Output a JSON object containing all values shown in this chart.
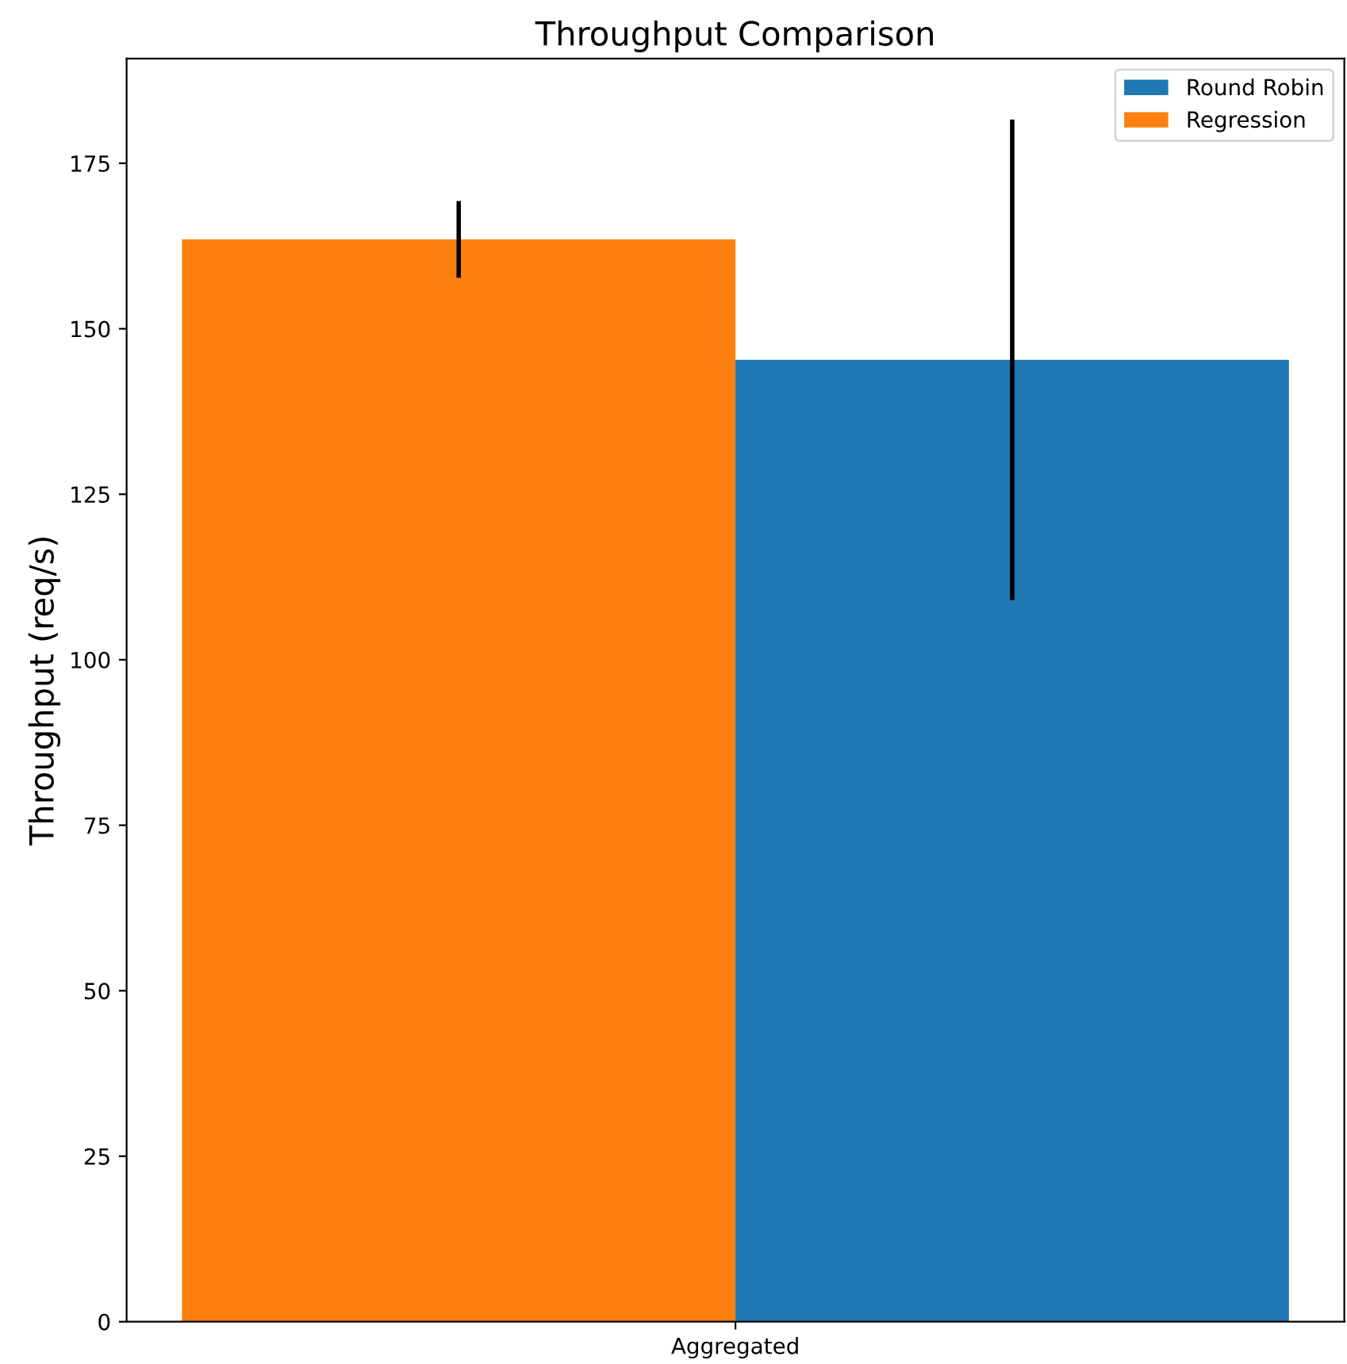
{
  "chart_data": {
    "type": "bar",
    "title": "Throughput Comparison",
    "ylabel": "Throughput (req/s)",
    "categories": [
      "Aggregated"
    ],
    "series": [
      {
        "name": "Regression",
        "color": "#ff7f0e",
        "values": [
          163.5
        ],
        "errors": [
          5.8
        ]
      },
      {
        "name": "Round Robin",
        "color": "#1f77b4",
        "values": [
          145.3
        ],
        "errors": [
          36.3
        ]
      }
    ],
    "ylim": [
      0,
      190.8
    ],
    "yticks": [
      0,
      25,
      50,
      75,
      100,
      125,
      150,
      175
    ],
    "grid": false,
    "legend": "top right"
  }
}
